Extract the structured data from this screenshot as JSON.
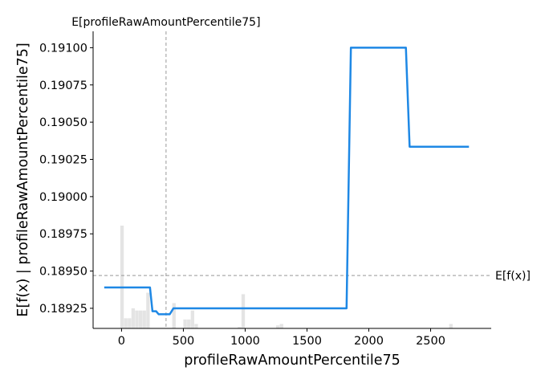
{
  "chart_data": {
    "type": "line",
    "xlabel": "profileRawAmountPercentile75",
    "ylabel": "E[f(x) | profileRawAmountPercentile75]",
    "xlim": [
      -230,
      2990
    ],
    "ylim": [
      0.189115,
      0.19111
    ],
    "x_ticks": [
      0,
      500,
      1000,
      1500,
      2000,
      2500
    ],
    "x_tick_labels": [
      "0",
      "500",
      "1000",
      "1500",
      "2000",
      "2500"
    ],
    "y_ticks": [
      0.18925,
      0.1895,
      0.18975,
      0.19,
      0.19025,
      0.1905,
      0.19075,
      0.191
    ],
    "y_tick_labels": [
      "0.18925",
      "0.18950",
      "0.18975",
      "0.19000",
      "0.19025",
      "0.19050",
      "0.19075",
      "0.19100"
    ],
    "grid": false,
    "colors": {
      "line": "#1E88E5",
      "histogram": "#e4e4e4",
      "reference": "#999999"
    },
    "series": [
      {
        "x": [
          -140,
          120,
          230,
          250,
          265,
          280,
          300,
          330,
          360,
          390,
          420,
          445,
          600,
          800,
          1000,
          1200,
          1400,
          1600,
          1820,
          1855,
          2300,
          2330,
          2810
        ],
        "y": [
          0.18939,
          0.18939,
          0.18939,
          0.18923,
          0.18923,
          0.18923,
          0.18921,
          0.18921,
          0.18921,
          0.18921,
          0.18925,
          0.18925,
          0.18925,
          0.18925,
          0.18925,
          0.18925,
          0.18925,
          0.18925,
          0.18925,
          0.191,
          0.191,
          0.190335,
          0.190335
        ]
      }
    ],
    "histogram": {
      "bin_edges": [
        -10,
        20,
        50,
        80,
        110,
        140,
        170,
        200,
        230,
        260,
        290,
        320,
        350,
        380,
        410,
        440,
        470,
        500,
        530,
        560,
        590,
        620,
        650,
        940,
        970,
        1000,
        1030,
        1060,
        1250,
        1280,
        1310,
        1340,
        2650,
        2680,
        2710
      ],
      "heights": [
        0.189805,
        0.189183,
        0.189183,
        0.18925,
        0.189235,
        0.189235,
        0.189235,
        0.189355,
        0.189115,
        0.189115,
        0.189115,
        0.189115,
        0.189115,
        0.189115,
        0.189285,
        0.189115,
        0.189115,
        0.189175,
        0.189175,
        0.189235,
        0.189145,
        0.189115,
        0.189115,
        0.189125,
        0.189345,
        0.189115,
        0.189115,
        0.189115,
        0.189135,
        0.189145,
        0.189115,
        0.189115,
        0.189145,
        0.189115
      ]
    },
    "reference_lines": {
      "vertical_x": 360,
      "vertical_label": "E[profileRawAmountPercentile75]",
      "horizontal_y": 0.18947,
      "horizontal_label": "E[f(x)]"
    }
  }
}
